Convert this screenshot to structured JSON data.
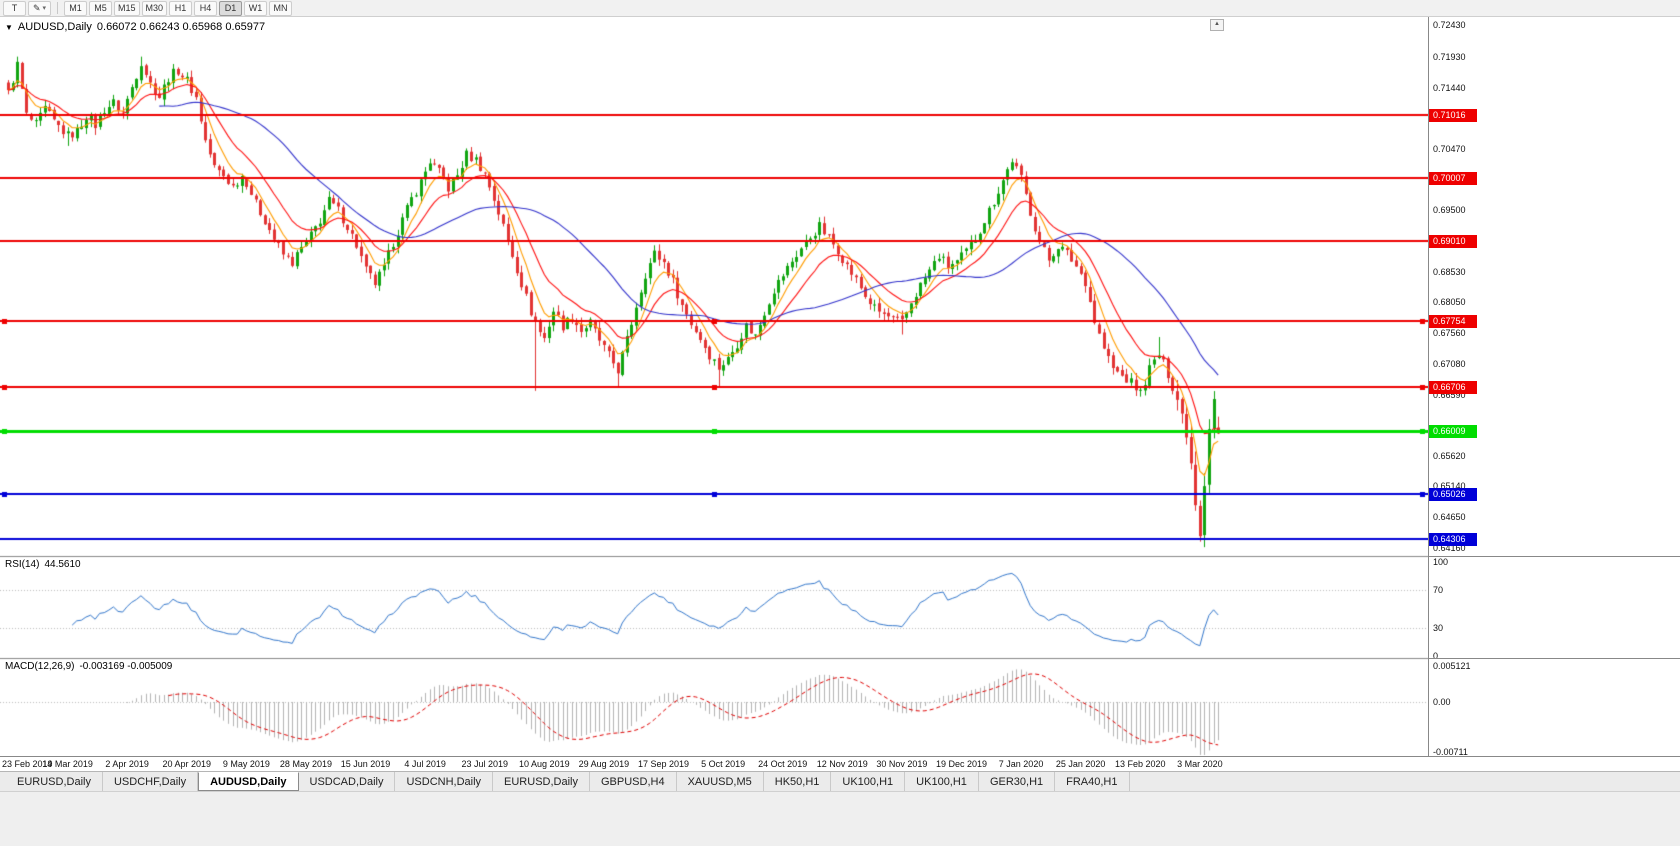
{
  "toolbar": {
    "text_tool": "T",
    "timeframes": [
      "M1",
      "M5",
      "M15",
      "M30",
      "H1",
      "H4",
      "D1",
      "W1",
      "MN"
    ],
    "active_timeframe": "D1"
  },
  "icons": {
    "title_marker": "▼",
    "caret": "▾",
    "scroll_up": "▲",
    "pencil": "✎"
  },
  "chart": {
    "symbol": "AUDUSD,Daily",
    "ohlc": "0.66072 0.66243 0.65968 0.65977"
  },
  "colors": {
    "candle_up": "#11a511",
    "candle_down": "#e23434",
    "rsi": "#3377cc",
    "macd_hist": "#b4b4b4",
    "macd_signal": "#e00000",
    "grid_dotted": "#bdbdbd",
    "separator": "#888888"
  },
  "price_axis": {
    "ticks": [
      "0.72430",
      "0.71930",
      "0.71440",
      "0.70950",
      "0.70470",
      "0.69980",
      "0.69500",
      "0.69010",
      "0.68530",
      "0.68050",
      "0.67560",
      "0.67080",
      "0.66590",
      "0.66110",
      "0.65620",
      "0.65140",
      "0.64650",
      "0.64160"
    ]
  },
  "hlines": [
    {
      "price": 0.71016,
      "label": "0.71016",
      "color": "#ee0000",
      "selected": false,
      "width": 2
    },
    {
      "price": 0.70007,
      "label": "0.70007",
      "color": "#ee0000",
      "selected": false,
      "width": 2
    },
    {
      "price": 0.6901,
      "label": "0.69010",
      "color": "#ee0000",
      "selected": false,
      "width": 2
    },
    {
      "price": 0.67754,
      "label": "0.67754",
      "color": "#ee0000",
      "selected": true,
      "width": 2
    },
    {
      "price": 0.66706,
      "label": "0.66706",
      "color": "#ee0000",
      "selected": true,
      "width": 2
    },
    {
      "price": 0.66009,
      "label": "0.66009",
      "color": "#00dd00",
      "selected": true,
      "width": 3
    },
    {
      "price": 0.65026,
      "label": "0.65026",
      "color": "#0000d8",
      "selected": true,
      "width": 2
    },
    {
      "price": 0.64306,
      "label": "0.64306",
      "color": "#0000d8",
      "selected": false,
      "width": 2
    }
  ],
  "rsi": {
    "label": "RSI(14)",
    "value": "44.5610",
    "ticks": [
      {
        "label": "100",
        "value": 100
      },
      {
        "label": "70",
        "value": 70
      },
      {
        "label": "30",
        "value": 30
      },
      {
        "label": "0",
        "value": 0
      }
    ],
    "levels": [
      70,
      30
    ]
  },
  "macd": {
    "label": "MACD(12,26,9)",
    "values": "-0.003169 -0.005009",
    "ticks": [
      {
        "label": "0.005121",
        "value": 0.005121
      },
      {
        "label": "0.00",
        "value": 0
      },
      {
        "label": "-0.00711",
        "value": -0.00711
      }
    ]
  },
  "x_axis": {
    "label_step": 13,
    "dates": [
      "23 Feb 2019",
      "14 Mar 2019",
      "2 Apr 2019",
      "20 Apr 2019",
      "9 May 2019",
      "28 May 2019",
      "15 Jun 2019",
      "4 Jul 2019",
      "23 Jul 2019",
      "10 Aug 2019",
      "29 Aug 2019",
      "17 Sep 2019",
      "5 Oct 2019",
      "24 Oct 2019",
      "12 Nov 2019",
      "30 Nov 2019",
      "19 Dec 2019",
      "7 Jan 2020",
      "25 Jan 2020",
      "13 Feb 2020",
      "3 Mar 2020"
    ]
  },
  "tabs": [
    {
      "label": "EURUSD,Daily",
      "active": false
    },
    {
      "label": "USDCHF,Daily",
      "active": false
    },
    {
      "label": "AUDUSD,Daily",
      "active": true
    },
    {
      "label": "USDCAD,Daily",
      "active": false
    },
    {
      "label": "USDCNH,Daily",
      "active": false
    },
    {
      "label": "EURUSD,Daily",
      "active": false
    },
    {
      "label": "GBPUSD,H4",
      "active": false
    },
    {
      "label": "XAUUSD,M5",
      "active": false
    },
    {
      "label": "HK50,H1",
      "active": false
    },
    {
      "label": "UK100,H1",
      "active": false
    },
    {
      "label": "UK100,H1",
      "active": false
    },
    {
      "label": "GER30,H1",
      "active": false
    },
    {
      "label": "FRA40,H1",
      "active": false
    }
  ],
  "chart_data": {
    "type": "candlestick",
    "symbol": "AUDUSD",
    "timeframe": "Daily",
    "x_range": [
      "23 Feb 2019",
      "3 Mar 2020"
    ],
    "y_range": [
      0.6404,
      0.7256
    ],
    "noise": 0.0016,
    "wick": 0.0011,
    "high_vol_range": [
      255,
      263
    ],
    "last_candle": {
      "o": 0.66072,
      "h": 0.66243,
      "l": 0.65968,
      "c": 0.65977
    },
    "anchors": [
      [
        0,
        0.7135
      ],
      [
        2,
        0.718
      ],
      [
        4,
        0.71
      ],
      [
        6,
        0.7085
      ],
      [
        8,
        0.711
      ],
      [
        10,
        0.709
      ],
      [
        13,
        0.7068
      ],
      [
        15,
        0.7075
      ],
      [
        17,
        0.71
      ],
      [
        19,
        0.7085
      ],
      [
        21,
        0.711
      ],
      [
        23,
        0.712
      ],
      [
        25,
        0.7105
      ],
      [
        27,
        0.7145
      ],
      [
        29,
        0.7185
      ],
      [
        31,
        0.715
      ],
      [
        33,
        0.713
      ],
      [
        35,
        0.716
      ],
      [
        37,
        0.7172
      ],
      [
        39,
        0.7155
      ],
      [
        41,
        0.7128
      ],
      [
        43,
        0.706
      ],
      [
        45,
        0.7018
      ],
      [
        47,
        0.7005
      ],
      [
        49,
        0.6988
      ],
      [
        51,
        0.7005
      ],
      [
        52,
        0.6995
      ],
      [
        54,
        0.696
      ],
      [
        56,
        0.6935
      ],
      [
        58,
        0.6905
      ],
      [
        60,
        0.688
      ],
      [
        62,
        0.6868
      ],
      [
        64,
        0.689
      ],
      [
        66,
        0.691
      ],
      [
        68,
        0.6935
      ],
      [
        70,
        0.6965
      ],
      [
        72,
        0.695
      ],
      [
        74,
        0.6925
      ],
      [
        76,
        0.6895
      ],
      [
        78,
        0.6855
      ],
      [
        80,
        0.6835
      ],
      [
        82,
        0.6858
      ],
      [
        84,
        0.69
      ],
      [
        86,
        0.6935
      ],
      [
        88,
        0.6968
      ],
      [
        90,
        0.6995
      ],
      [
        92,
        0.7028
      ],
      [
        94,
        0.701
      ],
      [
        96,
        0.6985
      ],
      [
        98,
        0.7005
      ],
      [
        100,
        0.7038
      ],
      [
        102,
        0.703
      ],
      [
        104,
        0.7008
      ],
      [
        106,
        0.6968
      ],
      [
        108,
        0.6925
      ],
      [
        110,
        0.688
      ],
      [
        112,
        0.6835
      ],
      [
        114,
        0.679
      ],
      [
        116,
        0.6758
      ],
      [
        117,
        0.6748
      ],
      [
        119,
        0.6792
      ],
      [
        121,
        0.6768
      ],
      [
        123,
        0.6782
      ],
      [
        125,
        0.676
      ],
      [
        127,
        0.6772
      ],
      [
        129,
        0.6745
      ],
      [
        131,
        0.672
      ],
      [
        133,
        0.6698
      ],
      [
        135,
        0.6745
      ],
      [
        137,
        0.68
      ],
      [
        139,
        0.685
      ],
      [
        141,
        0.6882
      ],
      [
        143,
        0.6868
      ],
      [
        145,
        0.6838
      ],
      [
        147,
        0.68
      ],
      [
        149,
        0.6772
      ],
      [
        151,
        0.6748
      ],
      [
        153,
        0.6722
      ],
      [
        155,
        0.6702
      ],
      [
        157,
        0.6715
      ],
      [
        159,
        0.674
      ],
      [
        161,
        0.6768
      ],
      [
        163,
        0.6752
      ],
      [
        165,
        0.679
      ],
      [
        167,
        0.6825
      ],
      [
        169,
        0.6848
      ],
      [
        171,
        0.687
      ],
      [
        173,
        0.689
      ],
      [
        175,
        0.6908
      ],
      [
        177,
        0.6925
      ],
      [
        179,
        0.6905
      ],
      [
        181,
        0.6888
      ],
      [
        183,
        0.6862
      ],
      [
        185,
        0.684
      ],
      [
        187,
        0.6815
      ],
      [
        189,
        0.6795
      ],
      [
        191,
        0.6785
      ],
      [
        193,
        0.6778
      ],
      [
        195,
        0.6772
      ],
      [
        197,
        0.6805
      ],
      [
        199,
        0.6832
      ],
      [
        201,
        0.6855
      ],
      [
        203,
        0.6878
      ],
      [
        205,
        0.6862
      ],
      [
        207,
        0.6868
      ],
      [
        209,
        0.6885
      ],
      [
        211,
        0.6905
      ],
      [
        213,
        0.6935
      ],
      [
        215,
        0.6965
      ],
      [
        217,
        0.6998
      ],
      [
        219,
        0.703
      ],
      [
        221,
        0.7
      ],
      [
        223,
        0.6948
      ],
      [
        225,
        0.69
      ],
      [
        227,
        0.6872
      ],
      [
        229,
        0.6895
      ],
      [
        231,
        0.6882
      ],
      [
        233,
        0.6862
      ],
      [
        235,
        0.6838
      ],
      [
        237,
        0.6775
      ],
      [
        239,
        0.6732
      ],
      [
        241,
        0.67
      ],
      [
        243,
        0.6688
      ],
      [
        245,
        0.6678
      ],
      [
        247,
        0.6662
      ],
      [
        249,
        0.67
      ],
      [
        251,
        0.6722
      ],
      [
        253,
        0.6692
      ],
      [
        255,
        0.6652
      ],
      [
        256,
        0.6628
      ],
      [
        257,
        0.6598
      ],
      [
        258,
        0.6552
      ],
      [
        259,
        0.649
      ],
      [
        260,
        0.644
      ],
      [
        261,
        0.652
      ],
      [
        262,
        0.6608
      ],
      [
        263,
        0.6652
      ],
      [
        264,
        0.65977
      ]
    ],
    "spikes": {
      "highs": [
        [
          2,
          0.7193
        ],
        [
          29,
          0.7193
        ],
        [
          37,
          0.7176
        ],
        [
          92,
          0.7032
        ],
        [
          100,
          0.7048
        ],
        [
          141,
          0.6895
        ],
        [
          177,
          0.6929
        ],
        [
          219,
          0.7032
        ],
        [
          251,
          0.675
        ],
        [
          263,
          0.6662
        ]
      ],
      "lows": [
        [
          13,
          0.7052
        ],
        [
          62,
          0.6865
        ],
        [
          81,
          0.6832
        ],
        [
          115,
          0.6665
        ],
        [
          133,
          0.6671
        ],
        [
          155,
          0.66703
        ],
        [
          195,
          0.6754
        ],
        [
          247,
          0.6657
        ],
        [
          260,
          0.64316
        ]
      ]
    },
    "indicators": {
      "moving_averages": [
        {
          "period": 6,
          "method": "EMA",
          "color": "#ff9d00"
        },
        {
          "period": 14,
          "method": "EMA",
          "color": "#ff1111"
        },
        {
          "period": 34,
          "method": "SMA",
          "color": "#3333cc"
        }
      ],
      "rsi": {
        "period": 14,
        "last": 44.561
      },
      "macd": {
        "fast": 12,
        "slow": 26,
        "signal": 9,
        "last_main": -0.003169,
        "last_signal": -0.005009
      }
    }
  }
}
